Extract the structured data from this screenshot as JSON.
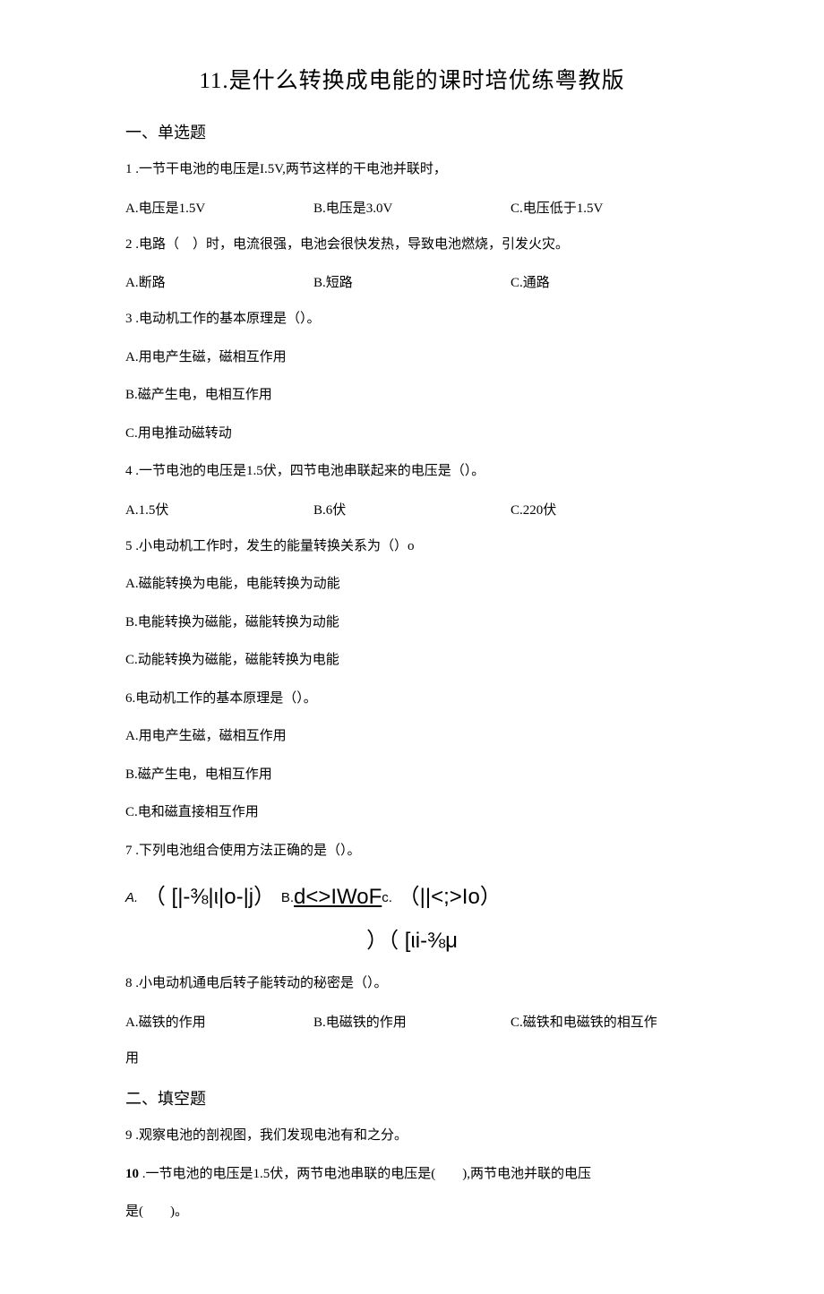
{
  "title": "11.是什么转换成电能的课时培优练粤教版",
  "section1": "一、单选题",
  "q1": {
    "stem": "1 .一节干电池的电压是I.5V,两节这样的干电池并联时，",
    "a": "A.电压是1.5V",
    "b": "B.电压是3.0V",
    "c": "C.电压低于1.5V"
  },
  "q2": {
    "stem": "2 .电路（　）时，电流很强，电池会很快发热，导致电池燃烧，引发火灾。",
    "a": "A.断路",
    "b": "B.短路",
    "c": "C.通路"
  },
  "q3": {
    "stem": "3 .电动机工作的基本原理是（）。",
    "a": "A.用电产生磁，磁相互作用",
    "b": "B.磁产生电，电相互作用",
    "c": "C.用电推动磁转动"
  },
  "q4": {
    "stem": "4 .一节电池的电压是1.5伏，四节电池串联起来的电压是（）。",
    "a": "A.1.5伏",
    "b": "B.6伏",
    "c": "C.220伏"
  },
  "q5": {
    "stem": "5 .小电动机工作时，发生的能量转换关系为（）o",
    "a": "A.磁能转换为电能，电能转换为动能",
    "b": "B.电能转换为磁能，磁能转换为动能",
    "c": "C.动能转换为磁能，磁能转换为电能"
  },
  "q6": {
    "stem": "6.电动机工作的基本原理是（）。",
    "a": "A.用电产生磁，磁相互作用",
    "b": "B.磁产生电，电相互作用",
    "c": "C.电和磁直接相互作用"
  },
  "q7": {
    "stem": "7 .下列电池组合使用方法正确的是（）。",
    "row1_a": "A.",
    "row1_a_sym": "（ [|-⅜|ι|o-|j） ",
    "row1_b": "B.",
    "row1_b_sym": "d<>IWoF",
    "row1_c": "c.",
    "row1_c_sym": "（||<;>Io）",
    "row2": "）（ [ιi-⅜μ"
  },
  "q8": {
    "stem": "8 .小电动机通电后转子能转动的秘密是（）。",
    "a": "A.磁铁的作用",
    "b": "B.电磁铁的作用",
    "c": "C.磁铁和电磁铁的相互作",
    "c2": "用"
  },
  "section2": "二、填空题",
  "q9": "9 .观察电池的剖视图，我们发现电池有和之分。",
  "q10_a": "10",
  "q10_b": " .一节电池的电压是1.5伏，两节电池串联的电压是(　　),两节电池并联的电压",
  "q10_c": "是(　　)。"
}
